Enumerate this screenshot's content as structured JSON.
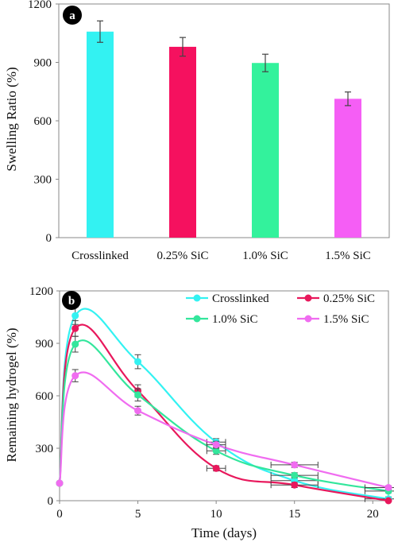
{
  "chart_data": [
    {
      "type": "bar",
      "panel_label": "a",
      "title": "",
      "xlabel": "",
      "ylabel": "Swelling Ratio (%)",
      "ylim": [
        0,
        1200
      ],
      "yticks": [
        "0",
        "300",
        "600",
        "900",
        "1200"
      ],
      "categories": [
        "Crosslinked",
        "0.25% SiC",
        "1.0% SiC",
        "1.5% SiC"
      ],
      "values": [
        1058,
        980,
        897,
        713
      ],
      "errors": [
        55,
        48,
        45,
        35
      ],
      "colors": [
        "#33f2f2",
        "#f5115f",
        "#33f29c",
        "#f55ef5"
      ],
      "grid": false,
      "legend": "none"
    },
    {
      "type": "line",
      "panel_label": "b",
      "title": "",
      "xlabel": "Time (days)",
      "ylabel": "Remaining hydrogel (%)",
      "xlim": [
        0,
        21
      ],
      "ylim": [
        0,
        1200
      ],
      "xticks": [
        "0",
        "5",
        "10",
        "15",
        "20"
      ],
      "yticks": [
        "0",
        "300",
        "600",
        "900",
        "1200"
      ],
      "legend": "top-right",
      "grid": false,
      "series": [
        {
          "name": "Crosslinked",
          "color": "#33f2f2",
          "x": [
            0,
            1,
            5,
            10,
            15,
            21
          ],
          "y": [
            100,
            1058,
            795,
            335,
            115,
            10
          ],
          "yerr": [
            0,
            50,
            40,
            20,
            18,
            12
          ],
          "xerr": [
            0,
            0,
            0,
            0.6,
            1.5,
            1.5
          ]
        },
        {
          "name": "0.25% SiC",
          "color": "#e8185c",
          "x": [
            0,
            1,
            5,
            10,
            15,
            21
          ],
          "y": [
            100,
            985,
            628,
            185,
            90,
            0
          ],
          "yerr": [
            0,
            45,
            35,
            15,
            15,
            0
          ],
          "xerr": [
            0,
            0,
            0,
            0.6,
            1.5,
            0
          ]
        },
        {
          "name": "1.0% SiC",
          "color": "#33e69c",
          "x": [
            0,
            1,
            5,
            10,
            15,
            21
          ],
          "y": [
            100,
            895,
            605,
            285,
            145,
            55
          ],
          "yerr": [
            0,
            45,
            35,
            20,
            15,
            10
          ],
          "xerr": [
            0,
            0,
            0,
            0.6,
            1.5,
            1.5
          ]
        },
        {
          "name": "1.5% SiC",
          "color": "#f06cf0",
          "x": [
            0,
            1,
            5,
            10,
            15,
            21
          ],
          "y": [
            100,
            715,
            515,
            320,
            205,
            75
          ],
          "yerr": [
            0,
            35,
            25,
            20,
            15,
            10
          ],
          "xerr": [
            0,
            0,
            0,
            0.6,
            1.5,
            1.5
          ]
        }
      ]
    }
  ]
}
